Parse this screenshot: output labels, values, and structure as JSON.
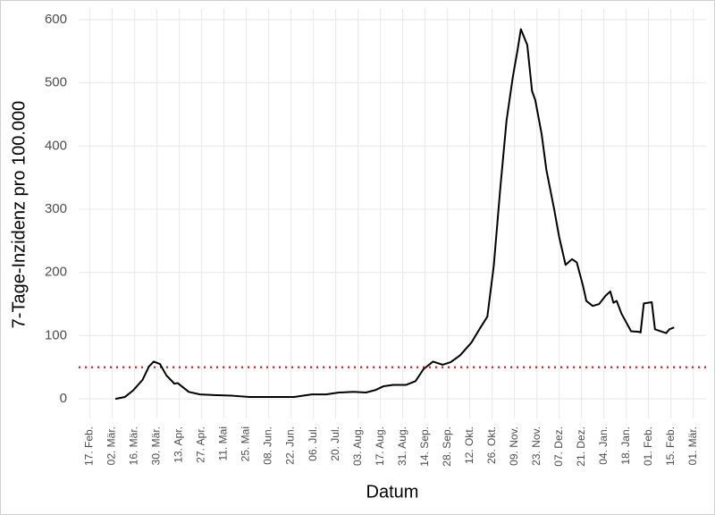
{
  "chart_data": {
    "type": "line",
    "x_label": "Datum",
    "y_label": "7-Tage-Inzidenz pro 100.000",
    "x": [
      "04. Mär.",
      "10. Mär.",
      "15. Mär.",
      "21. Mär.",
      "25. Mär.",
      "28. Mär.",
      "01. Apr.",
      "05. Apr.",
      "10. Apr.",
      "12. Apr.",
      "19. Apr.",
      "26. Apr.",
      "05. Mai",
      "16. Mai",
      "27. Mai",
      "07. Jun.",
      "24. Jun.",
      "05. Jul.",
      "14. Jul.",
      "22. Jul.",
      "31. Jul.",
      "08. Aug.",
      "14. Aug.",
      "19. Aug.",
      "25. Aug.",
      "02. Sep.",
      "08. Sep.",
      "13. Sep.",
      "19. Sep.",
      "25. Sep.",
      "30. Sep.",
      "06. Okt.",
      "13. Okt.",
      "18. Okt.",
      "23. Okt.",
      "27. Okt.",
      "31. Okt.",
      "04. Nov.",
      "08. Nov.",
      "11. Nov.",
      "13. Nov.",
      "17. Nov.",
      "20. Nov.",
      "22. Nov.",
      "26. Nov.",
      "29. Nov.",
      "04. Dez.",
      "07. Dez.",
      "11. Dez.",
      "15. Dez.",
      "18. Dez.",
      "22. Dez.",
      "24. Dez.",
      "28. Dez.",
      "01. Jan.",
      "05. Jan.",
      "08. Jan.",
      "10. Jan.",
      "12. Jan.",
      "15. Jan.",
      "21. Jan.",
      "26. Jan.",
      "27. Jan.",
      "29. Jan.",
      "03. Feb.",
      "05. Feb.",
      "12. Feb.",
      "14. Feb.",
      "17. Feb."
    ],
    "series": [
      {
        "color": "#000000",
        "values": [
          0,
          3,
          13,
          30,
          51,
          59,
          55,
          37,
          24,
          25,
          11,
          7,
          6,
          5,
          3,
          3,
          3,
          7,
          7,
          10,
          11,
          10,
          14,
          20,
          22,
          22,
          28,
          47,
          59,
          54,
          58,
          69,
          89,
          110,
          130,
          210,
          330,
          440,
          510,
          553,
          585,
          560,
          487,
          473,
          419,
          362,
          298,
          256,
          212,
          221,
          216,
          178,
          155,
          147,
          150,
          163,
          170,
          152,
          155,
          135,
          107,
          106,
          105,
          151,
          153,
          110,
          104,
          110,
          113
        ]
      }
    ],
    "hline": {
      "value": 50,
      "color": "#e41a1c"
    },
    "xlim": [
      "10. Feb.",
      "09. Mär."
    ],
    "xticks": [
      "17. Feb.",
      "02. Mär.",
      "16. Mär.",
      "30. Mär.",
      "13. Apr.",
      "27. Apr.",
      "11. Mai",
      "25. Mai",
      "08. Jun.",
      "22. Jun.",
      "06. Jul.",
      "20. Jul.",
      "03. Aug.",
      "17. Aug.",
      "31. Aug.",
      "14. Sep.",
      "28. Sep.",
      "12. Okt.",
      "26. Okt.",
      "09. Nov.",
      "23. Nov.",
      "07. Dez.",
      "21. Dez.",
      "04. Jan.",
      "18. Jan.",
      "01. Feb.",
      "15. Feb.",
      "01. Mär."
    ],
    "ylim": [
      -31,
      617
    ],
    "yticks": [
      0,
      100,
      200,
      300,
      400,
      500,
      600
    ],
    "grid": true
  }
}
